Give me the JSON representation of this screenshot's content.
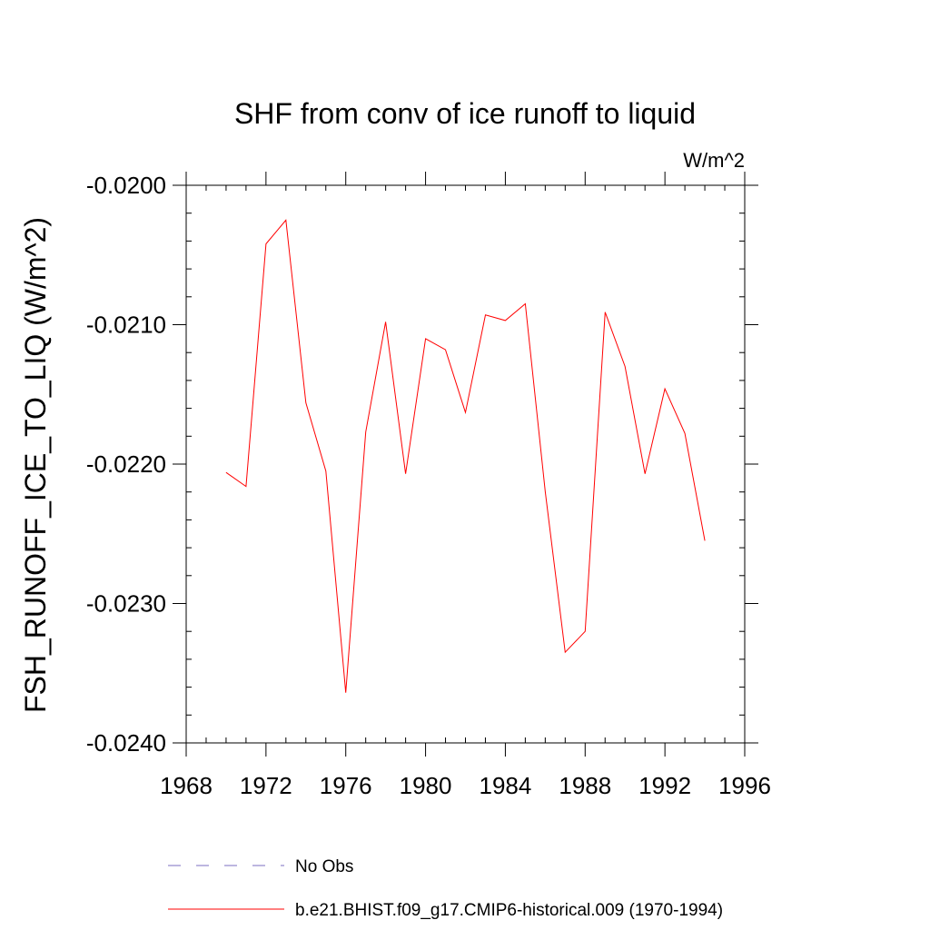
{
  "chart_data": {
    "type": "line",
    "title": "SHF from conv of ice runoff to liquid",
    "units_label": "W/m^2",
    "xlabel": "",
    "ylabel": "FSH_RUNOFF_ICE_TO_LIQ  (W/m^2)",
    "xlim": [
      1968,
      1996
    ],
    "ylim": [
      -0.024,
      -0.02
    ],
    "x_ticks": [
      1968,
      1972,
      1976,
      1980,
      1984,
      1988,
      1992,
      1996
    ],
    "x_tick_labels": [
      "1968",
      "1972",
      "1976",
      "1980",
      "1984",
      "1988",
      "1992",
      "1996"
    ],
    "y_ticks": [
      -0.024,
      -0.023,
      -0.022,
      -0.021,
      -0.02
    ],
    "y_tick_labels": [
      "-0.0240",
      "-0.0230",
      "-0.0220",
      "-0.0210",
      "-0.0200"
    ],
    "series": [
      {
        "name": "b.e21.BHIST.f09_g17.CMIP6-historical.009 (1970-1994)",
        "color": "#ff0000",
        "style": "solid",
        "x": [
          1970,
          1971,
          1972,
          1973,
          1974,
          1975,
          1976,
          1977,
          1978,
          1979,
          1980,
          1981,
          1982,
          1983,
          1984,
          1985,
          1986,
          1987,
          1988,
          1989,
          1990,
          1991,
          1992,
          1993,
          1994
        ],
        "values": [
          -0.02206,
          -0.02216,
          -0.02042,
          -0.02025,
          -0.02156,
          -0.02205,
          -0.02364,
          -0.02177,
          -0.02098,
          -0.02207,
          -0.0211,
          -0.02118,
          -0.02163,
          -0.02093,
          -0.02097,
          -0.02085,
          -0.0222,
          -0.02335,
          -0.0232,
          -0.02091,
          -0.0213,
          -0.02207,
          -0.02146,
          -0.02178,
          -0.02255
        ]
      }
    ],
    "legend": [
      {
        "label": "No Obs",
        "color": "#7b6fc0",
        "style": "dashed"
      },
      {
        "label": "b.e21.BHIST.f09_g17.CMIP6-historical.009 (1970-1994)",
        "color": "#ff0000",
        "style": "solid"
      }
    ],
    "legend_position": "bottom-center"
  }
}
